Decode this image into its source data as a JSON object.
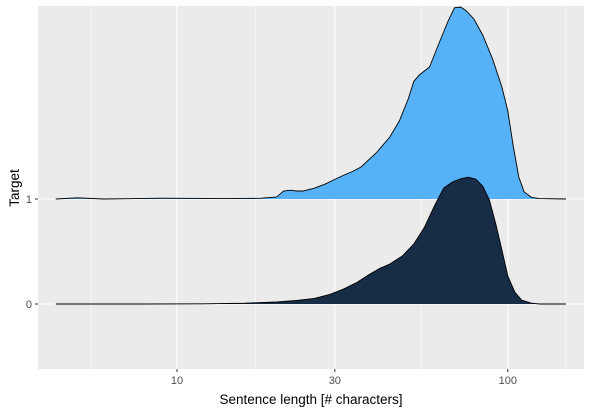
{
  "chart_data": {
    "type": "area",
    "subtype": "ridgeline-density",
    "title": "",
    "xlabel": "Sentence length [# characters]",
    "ylabel": "Target",
    "x_scale": "log10",
    "xlim": [
      3.8,
      170
    ],
    "x_ticks": [
      10,
      30,
      100
    ],
    "x_tick_labels": [
      "10",
      "30",
      "100"
    ],
    "y_tick_labels": [
      "0",
      "1"
    ],
    "grid": true,
    "legend": "none",
    "series": [
      {
        "name": "0",
        "color": "#172d46",
        "points": [
          [
            4.3,
            0.0
          ],
          [
            8,
            0.0
          ],
          [
            12,
            0.005
          ],
          [
            16,
            0.02
          ],
          [
            20,
            0.05
          ],
          [
            23,
            0.09
          ],
          [
            26,
            0.14
          ],
          [
            29,
            0.24
          ],
          [
            32,
            0.38
          ],
          [
            35,
            0.54
          ],
          [
            38,
            0.73
          ],
          [
            41,
            0.89
          ],
          [
            44,
            1.0
          ],
          [
            48,
            1.2
          ],
          [
            52,
            1.5
          ],
          [
            56,
            1.92
          ],
          [
            60,
            2.45
          ],
          [
            64,
            2.9
          ],
          [
            68,
            3.05
          ],
          [
            72,
            3.13
          ],
          [
            76,
            3.17
          ],
          [
            80,
            3.12
          ],
          [
            84,
            2.95
          ],
          [
            88,
            2.6
          ],
          [
            92,
            2.0
          ],
          [
            96,
            1.35
          ],
          [
            100,
            0.7
          ],
          [
            105,
            0.3
          ],
          [
            110,
            0.1
          ],
          [
            118,
            0.02
          ],
          [
            125,
            0.0
          ],
          [
            150,
            0.0
          ]
        ]
      },
      {
        "name": "1",
        "color": "#56b1f7",
        "points": [
          [
            4.3,
            0.0
          ],
          [
            5,
            0.03
          ],
          [
            6,
            0.0
          ],
          [
            9,
            0.02
          ],
          [
            14,
            0.01
          ],
          [
            18,
            0.02
          ],
          [
            20,
            0.05
          ],
          [
            21,
            0.2
          ],
          [
            22,
            0.22
          ],
          [
            23,
            0.2
          ],
          [
            24,
            0.2
          ],
          [
            26,
            0.27
          ],
          [
            28,
            0.37
          ],
          [
            30,
            0.49
          ],
          [
            32,
            0.6
          ],
          [
            34,
            0.69
          ],
          [
            36,
            0.8
          ],
          [
            40,
            1.15
          ],
          [
            44,
            1.55
          ],
          [
            47,
            1.95
          ],
          [
            50,
            2.5
          ],
          [
            52,
            2.94
          ],
          [
            54,
            3.1
          ],
          [
            58,
            3.3
          ],
          [
            62,
            3.9
          ],
          [
            66,
            4.45
          ],
          [
            69,
            4.78
          ],
          [
            72,
            4.8
          ],
          [
            75,
            4.7
          ],
          [
            79,
            4.5
          ],
          [
            84,
            4.1
          ],
          [
            90,
            3.5
          ],
          [
            96,
            2.8
          ],
          [
            100,
            2.2
          ],
          [
            104,
            1.3
          ],
          [
            108,
            0.55
          ],
          [
            112,
            0.18
          ],
          [
            118,
            0.04
          ],
          [
            125,
            0.01
          ],
          [
            150,
            0.0
          ]
        ]
      }
    ]
  }
}
